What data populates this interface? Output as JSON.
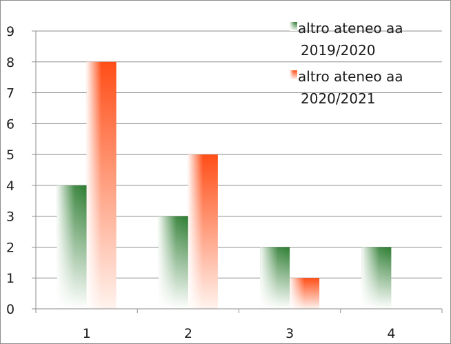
{
  "chart_data": {
    "type": "bar",
    "categories": [
      "1",
      "2",
      "3",
      "4"
    ],
    "series": [
      {
        "name": "altro ateneo aa 2019/2020",
        "values": [
          4,
          3,
          2,
          2
        ],
        "color": "#2e7d32"
      },
      {
        "name": "altro ateneo aa 2020/2021",
        "values": [
          8,
          5,
          1,
          null
        ],
        "color": "#ff5722"
      }
    ],
    "y_ticks": [
      "0",
      "1",
      "2",
      "3",
      "4",
      "5",
      "6",
      "7",
      "8",
      "9"
    ],
    "ylim": [
      0,
      9
    ],
    "grid": true,
    "legend_position": "top-right",
    "legend": [
      {
        "line1": "altro ateneo aa",
        "line2": "2019/2020"
      },
      {
        "line1": "altro ateneo aa",
        "line2": "2020/2021"
      }
    ]
  }
}
